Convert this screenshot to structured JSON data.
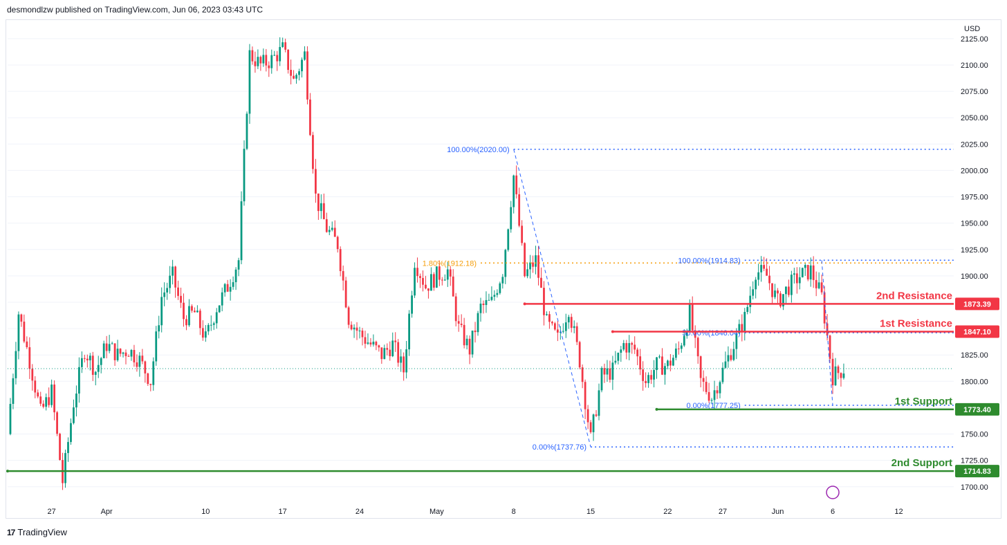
{
  "header": {
    "publisher_line": "desmondlzw published on TradingView.com, Jun 06, 2023 03:43 UTC"
  },
  "footer": {
    "brand": "TradingView",
    "logo_glyph": "17"
  },
  "colors": {
    "up": "#089981",
    "down": "#f23645",
    "resistance": "#f23645",
    "support": "#2e8b2e",
    "fib_blue": "#2962ff",
    "fib_orange": "#f59e0b",
    "grid": "#f0f3fa"
  },
  "chart_data": {
    "type": "candlestick",
    "symbol_currency": "USD",
    "ylim": [
      1690,
      2140
    ],
    "y_ticks": [
      "2125.00",
      "2100.00",
      "2075.00",
      "2050.00",
      "2025.00",
      "2000.00",
      "1975.00",
      "1950.00",
      "1925.00",
      "1900.00",
      "1875.00",
      "1850.00",
      "1825.00",
      "1800.00",
      "1775.00",
      "1750.00",
      "1725.00",
      "1700.00"
    ],
    "x_ticks": [
      {
        "label": "27",
        "day": 0
      },
      {
        "label": "Apr",
        "day": 5
      },
      {
        "label": "10",
        "day": 14
      },
      {
        "label": "17",
        "day": 21
      },
      {
        "label": "24",
        "day": 28
      },
      {
        "label": "May",
        "day": 35
      },
      {
        "label": "8",
        "day": 42
      },
      {
        "label": "15",
        "day": 49
      },
      {
        "label": "22",
        "day": 56
      },
      {
        "label": "27",
        "day": 61
      },
      {
        "label": "Jun",
        "day": 66
      },
      {
        "label": "6",
        "day": 71
      },
      {
        "label": "12",
        "day": 77
      }
    ],
    "x_range_days": [
      -4,
      82
    ],
    "price_path": [
      [
        -4,
        1750
      ],
      [
        -3,
        1865
      ],
      [
        -2,
        1820
      ],
      [
        -1,
        1770
      ],
      [
        0,
        1790
      ],
      [
        1,
        1705
      ],
      [
        2,
        1780
      ],
      [
        3,
        1830
      ],
      [
        4,
        1810
      ],
      [
        5,
        1835
      ],
      [
        6,
        1825
      ],
      [
        7,
        1830
      ],
      [
        8,
        1820
      ],
      [
        9,
        1800
      ],
      [
        10,
        1880
      ],
      [
        11,
        1900
      ],
      [
        12,
        1860
      ],
      [
        13,
        1865
      ],
      [
        14,
        1840
      ],
      [
        15,
        1870
      ],
      [
        16,
        1890
      ],
      [
        17,
        1915
      ],
      [
        18,
        2110
      ],
      [
        19,
        2100
      ],
      [
        20,
        2105
      ],
      [
        21,
        2115
      ],
      [
        22,
        2085
      ],
      [
        23,
        2110
      ],
      [
        24,
        1975
      ],
      [
        25,
        1945
      ],
      [
        26,
        1930
      ],
      [
        27,
        1860
      ],
      [
        28,
        1845
      ],
      [
        29,
        1835
      ],
      [
        30,
        1825
      ],
      [
        31,
        1835
      ],
      [
        32,
        1810
      ],
      [
        33,
        1915
      ],
      [
        34,
        1890
      ],
      [
        35,
        1900
      ],
      [
        36,
        1905
      ],
      [
        37,
        1850
      ],
      [
        38,
        1830
      ],
      [
        39,
        1870
      ],
      [
        40,
        1875
      ],
      [
        41,
        1905
      ],
      [
        42,
        1995
      ],
      [
        43,
        1900
      ],
      [
        44,
        1915
      ],
      [
        45,
        1855
      ],
      [
        46,
        1840
      ],
      [
        47,
        1870
      ],
      [
        48,
        1820
      ],
      [
        49,
        1745
      ],
      [
        50,
        1805
      ],
      [
        51,
        1810
      ],
      [
        52,
        1835
      ],
      [
        53,
        1830
      ],
      [
        54,
        1800
      ],
      [
        55,
        1815
      ],
      [
        56,
        1815
      ],
      [
        57,
        1830
      ],
      [
        58,
        1865
      ],
      [
        59,
        1800
      ],
      [
        60,
        1785
      ],
      [
        61,
        1810
      ],
      [
        62,
        1835
      ],
      [
        63,
        1860
      ],
      [
        64,
        1905
      ],
      [
        65,
        1900
      ],
      [
        66,
        1875
      ],
      [
        67,
        1890
      ],
      [
        68,
        1900
      ],
      [
        69,
        1905
      ],
      [
        70,
        1880
      ],
      [
        71,
        1805
      ],
      [
        72,
        1812
      ]
    ],
    "last_price": 1812,
    "levels": [
      {
        "name": "2nd Resistance",
        "value": 1873.39,
        "label": "1873.39",
        "kind": "resistance",
        "from_day": 43
      },
      {
        "name": "1st Resistance",
        "value": 1847.1,
        "label": "1847.10",
        "kind": "resistance",
        "from_day": 51
      },
      {
        "name": "1st Support",
        "value": 1773.4,
        "label": "1773.40",
        "kind": "support",
        "from_day": 55
      },
      {
        "name": "2nd Support",
        "value": 1714.83,
        "label": "1714.83",
        "kind": "support",
        "from_day": -4
      }
    ],
    "fib_annotations": [
      {
        "text": "100.00%(2020.00)",
        "value": 2020.0,
        "from_day": 42,
        "color": "blue"
      },
      {
        "text": "0.00%(1737.76)",
        "value": 1737.76,
        "from_day": 49,
        "color": "blue"
      },
      {
        "text": "1.80%(1912.18)",
        "value": 1912.18,
        "from_day": 39,
        "color": "orange"
      },
      {
        "text": "100.00%(1914.83)",
        "value": 1914.83,
        "from_day": 63,
        "color": "blue"
      },
      {
        "text": "50.00%(1846.04)",
        "value": 1846.04,
        "from_day": 63,
        "color": "blue"
      },
      {
        "text": "0.00%(1777.25)",
        "value": 1777.25,
        "from_day": 63,
        "color": "blue"
      }
    ]
  }
}
